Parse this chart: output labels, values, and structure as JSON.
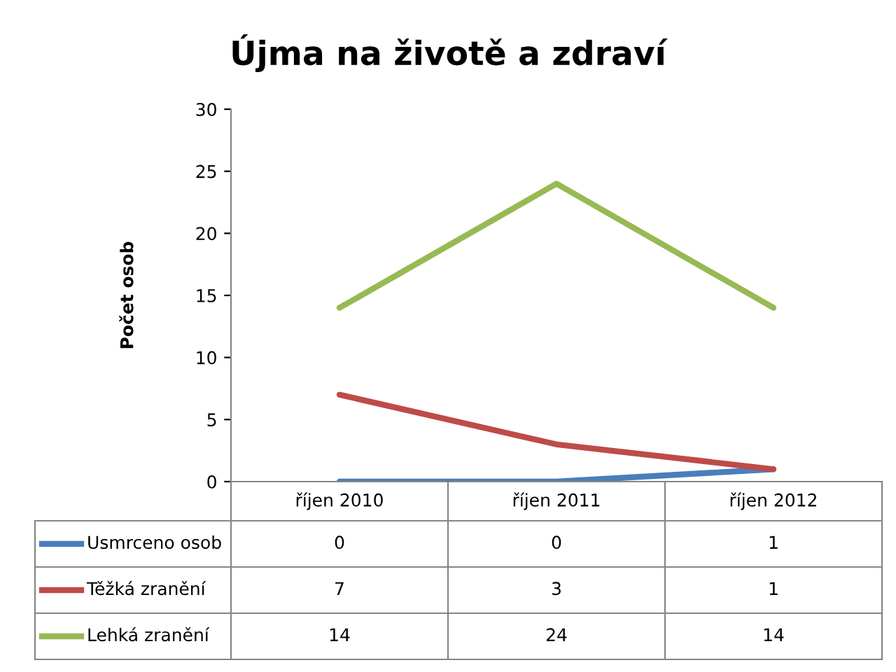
{
  "chart_data": {
    "type": "line",
    "title": "Újma na životě a zdraví",
    "ylabel": "Počet osob",
    "categories": [
      "říjen 2010",
      "říjen 2011",
      "říjen 2012"
    ],
    "series": [
      {
        "name": "Usmrceno osob",
        "color": "#4a7ebb",
        "values": [
          0,
          0,
          1
        ]
      },
      {
        "name": "Těžká zranění",
        "color": "#be4b48",
        "values": [
          7,
          3,
          1
        ]
      },
      {
        "name": "Lehká zranění",
        "color": "#98b954",
        "values": [
          14,
          24,
          14
        ]
      }
    ],
    "ylim": [
      0,
      30
    ],
    "yticks": [
      0,
      5,
      10,
      15,
      20,
      25,
      30
    ],
    "grid": false,
    "legend": "bottom",
    "data_labels": true,
    "marker": "none",
    "line_style": "solid"
  }
}
